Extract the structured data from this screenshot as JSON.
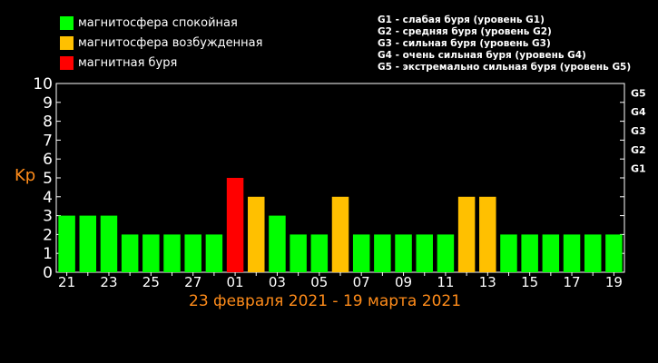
{
  "legend": [
    {
      "label": "магнитосфера спокойная",
      "color": "#00ff00"
    },
    {
      "label": "магнитосфера возбужденная",
      "color": "#ffc000"
    },
    {
      "label": "магнитная буря",
      "color": "#ff0000"
    }
  ],
  "storm_levels": [
    "G1 - слабая буря (уровень G1)",
    "G2 - средняя буря (уровень G2)",
    "G3 - сильная буря (уровень G3)",
    "G4 - очень сильная буря (уровень G4)",
    "G5 - экстремально сильная буря (уровень G5)"
  ],
  "date_range": "23 февраля 2021 - 19 марта 2021",
  "chart_data": {
    "type": "bar",
    "ylabel": "Kp",
    "ylim": [
      0,
      10
    ],
    "y_ticks": [
      "0",
      "1",
      "2",
      "3",
      "4",
      "5",
      "6",
      "7",
      "8",
      "9",
      "10"
    ],
    "g_ticks": [
      {
        "label": "G1",
        "value": 5
      },
      {
        "label": "G2",
        "value": 6
      },
      {
        "label": "G3",
        "value": 7
      },
      {
        "label": "G4",
        "value": 8
      },
      {
        "label": "G5",
        "value": 9
      }
    ],
    "x_labels": [
      "21",
      "23",
      "25",
      "27",
      "01",
      "03",
      "05",
      "07",
      "09",
      "11",
      "13",
      "15",
      "17",
      "19"
    ],
    "values": [
      3,
      3,
      3,
      2,
      2,
      2,
      2,
      2,
      5,
      4,
      3,
      2,
      2,
      4,
      2,
      2,
      2,
      2,
      2,
      4,
      4,
      2,
      2,
      2,
      2,
      2,
      2
    ],
    "colors": [
      "#00ff00",
      "#00ff00",
      "#00ff00",
      "#00ff00",
      "#00ff00",
      "#00ff00",
      "#00ff00",
      "#00ff00",
      "#ff0000",
      "#ffc000",
      "#00ff00",
      "#00ff00",
      "#00ff00",
      "#ffc000",
      "#00ff00",
      "#00ff00",
      "#00ff00",
      "#00ff00",
      "#00ff00",
      "#ffc000",
      "#ffc000",
      "#00ff00",
      "#00ff00",
      "#00ff00",
      "#00ff00",
      "#00ff00",
      "#00ff00"
    ]
  }
}
